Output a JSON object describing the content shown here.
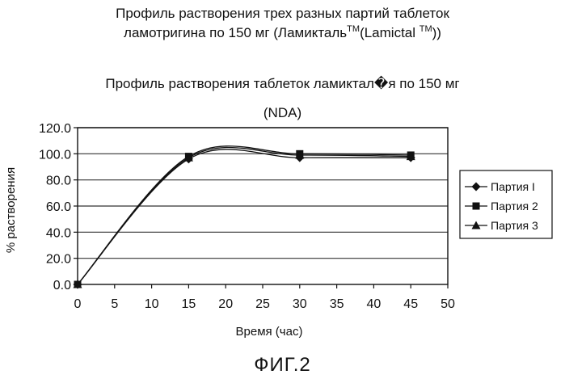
{
  "header": {
    "title_line1": "Профиль растворения трех разных партий таблеток",
    "title_line2_prefix": "ламотригина по 150 мг (Ламикталь",
    "tm1": "TM",
    "title_line2_middle": "(Lamictal ",
    "tm2": "TM",
    "title_line2_suffix": "))"
  },
  "figure_label": "ФИГ.2",
  "chart_data": {
    "type": "line",
    "title": "Профиль растворения таблеток ламиктал�я по 150 мг",
    "subtitle": "(NDA)",
    "xlabel": "Время (час)",
    "ylabel": "% растворения",
    "xlim": [
      0,
      50
    ],
    "ylim": [
      0,
      120
    ],
    "x_ticks": [
      "0",
      "5",
      "10",
      "15",
      "20",
      "25",
      "30",
      "35",
      "40",
      "45",
      "50"
    ],
    "y_ticks": [
      "0.0",
      "20.0",
      "40.0",
      "60.0",
      "80.0",
      "100.0",
      "120.0"
    ],
    "grid": "horizontal",
    "legend_position": "right",
    "colors": {
      "line": "#111111",
      "grid": "#333333",
      "plot_bg": "#ffffff"
    },
    "series": [
      {
        "name": "Партия I",
        "marker": "diamond",
        "x": [
          0,
          15,
          30,
          45
        ],
        "y": [
          0,
          96,
          97,
          97
        ]
      },
      {
        "name": "Партия 2",
        "marker": "square",
        "x": [
          0,
          15,
          30,
          45
        ],
        "y": [
          0,
          98,
          100,
          99
        ]
      },
      {
        "name": "Партия 3",
        "marker": "triangle",
        "x": [
          0,
          15,
          30,
          45
        ],
        "y": [
          0,
          97,
          99,
          98
        ]
      }
    ]
  }
}
